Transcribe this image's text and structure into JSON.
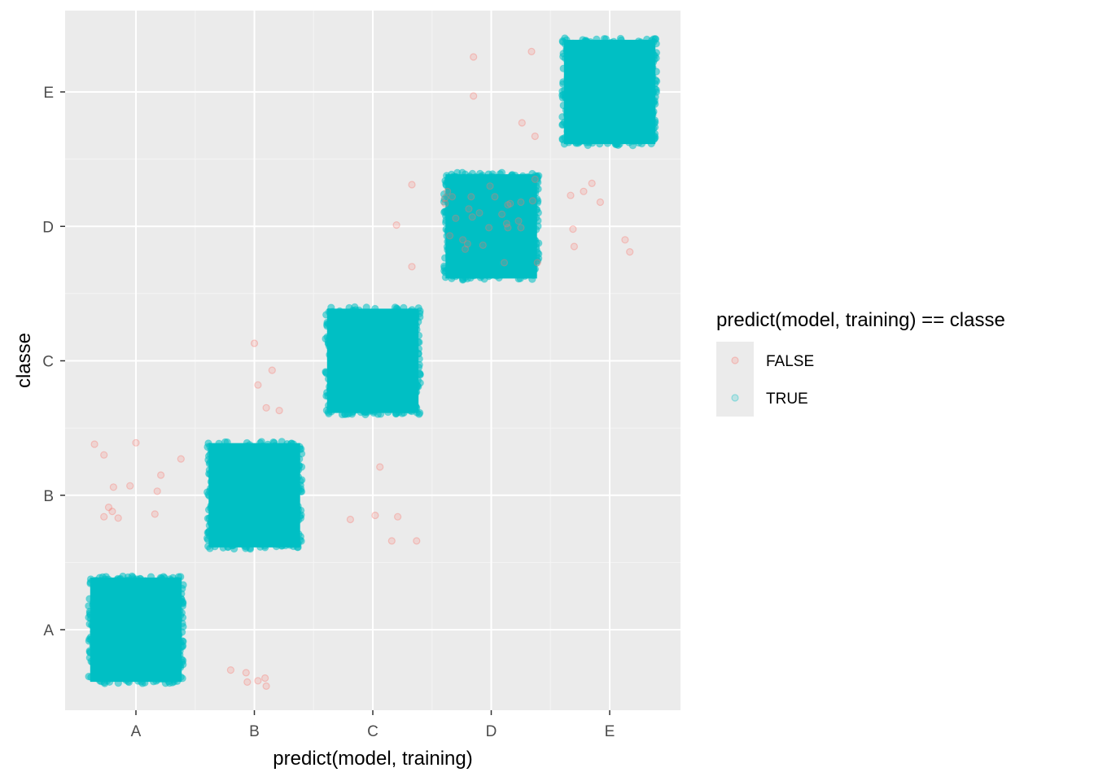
{
  "chart_data": {
    "type": "scatter",
    "subtype": "jitter",
    "xlabel": "predict(model, training)",
    "ylabel": "classe",
    "x_categories": [
      "A",
      "B",
      "C",
      "D",
      "E"
    ],
    "y_categories": [
      "A",
      "B",
      "C",
      "D",
      "E"
    ],
    "jitter": 0.4,
    "grid": true,
    "panel_background": "#EBEBEB",
    "legend": {
      "title": "predict(model, training) == classe",
      "position": "right",
      "entries": [
        {
          "label": "FALSE",
          "color": "#F8766D"
        },
        {
          "label": "TRUE",
          "color": "#00BFC4"
        }
      ]
    },
    "series": [
      {
        "name": "TRUE",
        "color": "#00BFC4",
        "description": "dense jittered clouds of correctly classified points on the diagonal",
        "clusters": [
          {
            "x": "A",
            "y": "A"
          },
          {
            "x": "B",
            "y": "B"
          },
          {
            "x": "C",
            "y": "C"
          },
          {
            "x": "D",
            "y": "D"
          },
          {
            "x": "E",
            "y": "E"
          }
        ]
      },
      {
        "name": "FALSE",
        "color": "#F8766D",
        "points": [
          [
            -0.35,
            1.38
          ],
          [
            -0.27,
            1.3
          ],
          [
            -0.19,
            1.06
          ],
          [
            -0.05,
            1.07
          ],
          [
            0.18,
            1.03
          ],
          [
            -0.23,
            0.91
          ],
          [
            -0.2,
            0.88
          ],
          [
            -0.27,
            0.84
          ],
          [
            -0.15,
            0.83
          ],
          [
            0.16,
            0.86
          ],
          [
            0.21,
            1.15
          ],
          [
            0.38,
            1.27
          ],
          [
            0.0,
            1.39
          ],
          [
            1.0,
            2.13
          ],
          [
            1.15,
            1.93
          ],
          [
            1.03,
            1.82
          ],
          [
            1.1,
            1.65
          ],
          [
            1.21,
            1.63
          ],
          [
            0.8,
            -0.3
          ],
          [
            0.93,
            -0.32
          ],
          [
            1.03,
            -0.38
          ],
          [
            1.1,
            -0.42
          ],
          [
            1.09,
            -0.36
          ],
          [
            0.94,
            -0.39
          ],
          [
            2.06,
            1.21
          ],
          [
            1.81,
            0.82
          ],
          [
            2.02,
            0.85
          ],
          [
            2.21,
            0.84
          ],
          [
            2.16,
            0.66
          ],
          [
            2.37,
            0.66
          ],
          [
            2.33,
            2.7
          ],
          [
            2.33,
            3.31
          ],
          [
            2.2,
            3.01
          ],
          [
            2.63,
            3.26
          ],
          [
            2.67,
            3.22
          ],
          [
            2.61,
            3.17
          ],
          [
            2.81,
            3.13
          ],
          [
            2.9,
            3.1
          ],
          [
            2.83,
            3.22
          ],
          [
            2.99,
            3.3
          ],
          [
            3.03,
            3.22
          ],
          [
            3.14,
            3.16
          ],
          [
            3.16,
            3.17
          ],
          [
            3.25,
            3.18
          ],
          [
            3.35,
            3.19
          ],
          [
            2.7,
            3.06
          ],
          [
            2.84,
            3.07
          ],
          [
            3.09,
            3.09
          ],
          [
            3.23,
            3.04
          ],
          [
            3.37,
            3.35
          ],
          [
            3.13,
            3.02
          ],
          [
            2.98,
            2.99
          ],
          [
            3.14,
            2.99
          ],
          [
            3.25,
            2.99
          ],
          [
            2.61,
            3.21
          ],
          [
            2.65,
            2.93
          ],
          [
            2.76,
            2.9
          ],
          [
            2.8,
            2.87
          ],
          [
            2.93,
            2.86
          ],
          [
            2.78,
            2.83
          ],
          [
            3.11,
            2.73
          ],
          [
            3.39,
            2.73
          ],
          [
            2.85,
            4.26
          ],
          [
            2.85,
            3.97
          ],
          [
            3.26,
            3.77
          ],
          [
            3.37,
            3.67
          ],
          [
            3.34,
            4.3
          ],
          [
            3.67,
            3.23
          ],
          [
            3.78,
            3.26
          ],
          [
            3.85,
            3.32
          ],
          [
            3.92,
            3.18
          ],
          [
            3.69,
            2.98
          ],
          [
            3.7,
            2.85
          ],
          [
            4.13,
            2.9
          ],
          [
            4.17,
            2.81
          ]
        ]
      }
    ]
  }
}
